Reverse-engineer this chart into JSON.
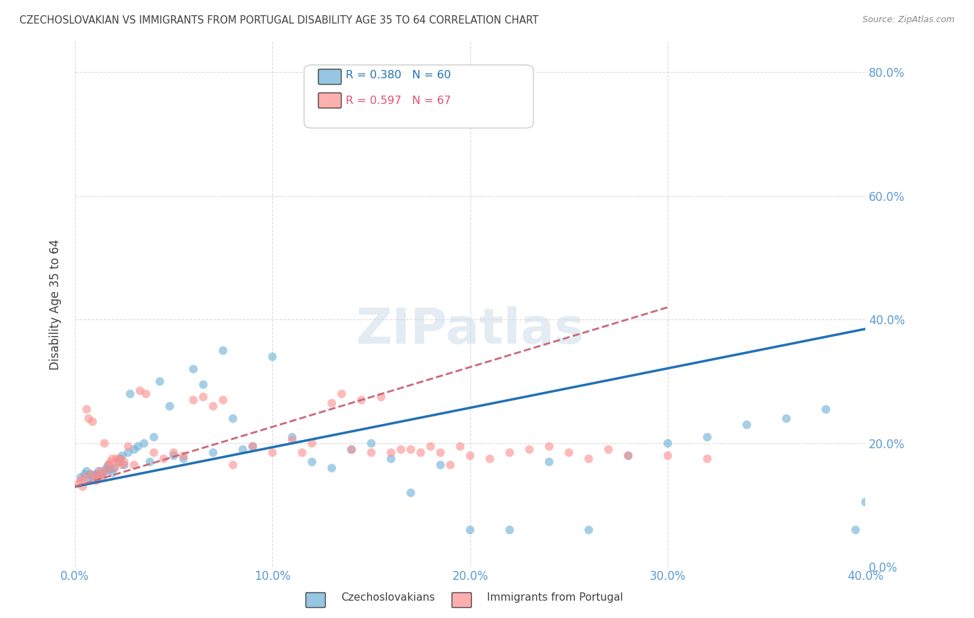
{
  "title": "CZECHOSLOVAKIAN VS IMMIGRANTS FROM PORTUGAL DISABILITY AGE 35 TO 64 CORRELATION CHART",
  "source": "Source: ZipAtlas.com",
  "xlabel": "",
  "ylabel": "Disability Age 35 to 64",
  "xlim": [
    0.0,
    0.4
  ],
  "ylim": [
    0.0,
    0.85
  ],
  "xticks": [
    0.0,
    0.1,
    0.2,
    0.3,
    0.4
  ],
  "yticks": [
    0.0,
    0.2,
    0.4,
    0.6,
    0.8
  ],
  "xtick_labels": [
    "0.0%",
    "10.0%",
    "20.0%",
    "30.0%",
    "40.0%"
  ],
  "ytick_labels": [
    "0.0%",
    "20.0%",
    "40.0%",
    "60.0%",
    "80.0%"
  ],
  "legend1_label": "Czechoslovakians",
  "legend2_label": "Immigrants from Portugal",
  "R1": 0.38,
  "N1": 60,
  "R2": 0.597,
  "N2": 67,
  "color1": "#6baed6",
  "color2": "#fc8d8d",
  "trendline1_color": "#2171b5",
  "trendline2_color": "#c9697a",
  "background_color": "#ffffff",
  "grid_color": "#cccccc",
  "title_color": "#404040",
  "axis_label_color": "#404040",
  "tick_color": "#5b9bd5",
  "watermark_text": "ZIPatlas",
  "blue_scatter_x": [
    0.003,
    0.005,
    0.006,
    0.007,
    0.008,
    0.009,
    0.01,
    0.011,
    0.012,
    0.013,
    0.014,
    0.015,
    0.016,
    0.017,
    0.018,
    0.019,
    0.02,
    0.022,
    0.023,
    0.024,
    0.025,
    0.027,
    0.028,
    0.03,
    0.032,
    0.035,
    0.038,
    0.04,
    0.043,
    0.048,
    0.05,
    0.055,
    0.06,
    0.065,
    0.07,
    0.075,
    0.08,
    0.085,
    0.09,
    0.1,
    0.11,
    0.12,
    0.13,
    0.14,
    0.15,
    0.16,
    0.17,
    0.185,
    0.2,
    0.22,
    0.24,
    0.26,
    0.28,
    0.3,
    0.32,
    0.34,
    0.36,
    0.38,
    0.395,
    0.4
  ],
  "blue_scatter_y": [
    0.145,
    0.15,
    0.155,
    0.14,
    0.15,
    0.145,
    0.148,
    0.15,
    0.155,
    0.148,
    0.15,
    0.155,
    0.16,
    0.165,
    0.158,
    0.152,
    0.16,
    0.17,
    0.175,
    0.18,
    0.165,
    0.185,
    0.28,
    0.19,
    0.195,
    0.2,
    0.17,
    0.21,
    0.3,
    0.26,
    0.18,
    0.175,
    0.32,
    0.295,
    0.185,
    0.35,
    0.24,
    0.19,
    0.195,
    0.34,
    0.21,
    0.17,
    0.16,
    0.19,
    0.2,
    0.175,
    0.12,
    0.165,
    0.06,
    0.06,
    0.17,
    0.06,
    0.18,
    0.2,
    0.21,
    0.23,
    0.24,
    0.255,
    0.06,
    0.105
  ],
  "pink_scatter_x": [
    0.002,
    0.003,
    0.004,
    0.005,
    0.006,
    0.007,
    0.008,
    0.009,
    0.01,
    0.011,
    0.012,
    0.013,
    0.014,
    0.015,
    0.016,
    0.017,
    0.018,
    0.019,
    0.02,
    0.021,
    0.022,
    0.023,
    0.024,
    0.025,
    0.027,
    0.03,
    0.033,
    0.036,
    0.04,
    0.045,
    0.05,
    0.055,
    0.06,
    0.065,
    0.07,
    0.075,
    0.08,
    0.09,
    0.1,
    0.11,
    0.115,
    0.12,
    0.13,
    0.135,
    0.14,
    0.145,
    0.15,
    0.155,
    0.16,
    0.165,
    0.17,
    0.175,
    0.18,
    0.185,
    0.19,
    0.195,
    0.2,
    0.21,
    0.22,
    0.23,
    0.24,
    0.25,
    0.26,
    0.27,
    0.28,
    0.3,
    0.32
  ],
  "pink_scatter_y": [
    0.135,
    0.14,
    0.13,
    0.145,
    0.255,
    0.24,
    0.15,
    0.235,
    0.145,
    0.14,
    0.15,
    0.155,
    0.145,
    0.2,
    0.155,
    0.165,
    0.17,
    0.175,
    0.16,
    0.175,
    0.17,
    0.175,
    0.165,
    0.17,
    0.195,
    0.165,
    0.285,
    0.28,
    0.185,
    0.175,
    0.185,
    0.18,
    0.27,
    0.275,
    0.26,
    0.27,
    0.165,
    0.195,
    0.185,
    0.205,
    0.185,
    0.2,
    0.265,
    0.28,
    0.19,
    0.27,
    0.185,
    0.275,
    0.185,
    0.19,
    0.19,
    0.185,
    0.195,
    0.185,
    0.165,
    0.195,
    0.18,
    0.175,
    0.185,
    0.19,
    0.195,
    0.185,
    0.175,
    0.19,
    0.18,
    0.18,
    0.175
  ],
  "trendline1_x": [
    0.0,
    0.4
  ],
  "trendline1_y": [
    0.13,
    0.385
  ],
  "trendline2_x": [
    0.0,
    0.3
  ],
  "trendline2_y": [
    0.13,
    0.42
  ]
}
